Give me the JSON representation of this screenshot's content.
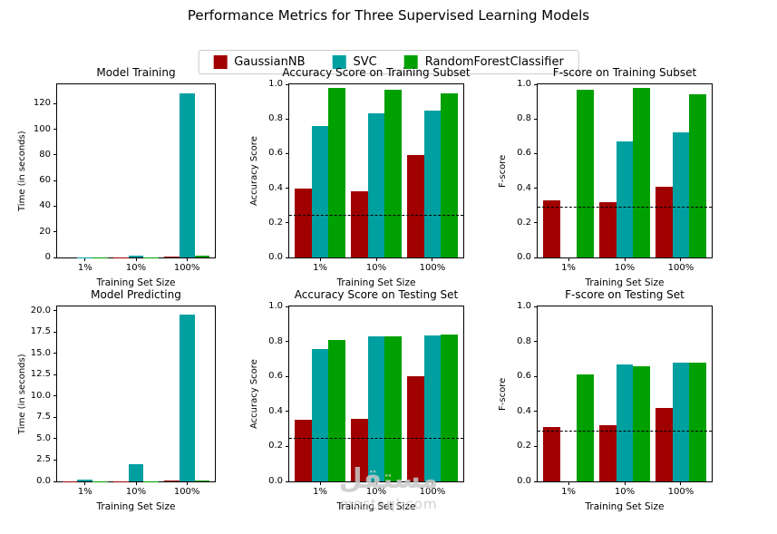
{
  "figure": {
    "title": "Performance Metrics for Three Supervised Learning Models",
    "watermark_line1": "مستقل",
    "watermark_line2": "mostaql.com"
  },
  "legend": {
    "items": [
      {
        "label": "GaussianNB",
        "color": "#A00000"
      },
      {
        "label": "SVC",
        "color": "#00A0A0"
      },
      {
        "label": "RandomForestClassifier",
        "color": "#00A000"
      }
    ]
  },
  "chart_data": [
    {
      "type": "bar",
      "title": "Model Training",
      "xlabel": "Training Set Size",
      "ylabel": "Time (in seconds)",
      "categories": [
        "1%",
        "10%",
        "100%"
      ],
      "series": [
        {
          "name": "GaussianNB",
          "color": "#A00000",
          "values": [
            0.05,
            0.1,
            0.4
          ]
        },
        {
          "name": "SVC",
          "color": "#00A0A0",
          "values": [
            0.2,
            1.5,
            128
          ]
        },
        {
          "name": "RandomForestClassifier",
          "color": "#00A000",
          "values": [
            0.1,
            0.3,
            1.3
          ]
        }
      ],
      "ylim": [
        0,
        135
      ],
      "yticks": [
        0,
        20,
        40,
        60,
        80,
        100,
        120
      ],
      "ytick_labels": [
        "0",
        "20",
        "40",
        "60",
        "80",
        "100",
        "120"
      ],
      "baseline": null,
      "grid": false
    },
    {
      "type": "bar",
      "title": "Accuracy Score on Training Subset",
      "xlabel": "Training Set Size",
      "ylabel": "Accuracy Score",
      "categories": [
        "1%",
        "10%",
        "100%"
      ],
      "series": [
        {
          "name": "GaussianNB",
          "color": "#A00000",
          "values": [
            0.4,
            0.38,
            0.59
          ]
        },
        {
          "name": "SVC",
          "color": "#00A0A0",
          "values": [
            0.76,
            0.83,
            0.85
          ]
        },
        {
          "name": "RandomForestClassifier",
          "color": "#00A000",
          "values": [
            0.98,
            0.97,
            0.95
          ]
        }
      ],
      "ylim": [
        0,
        1.0
      ],
      "yticks": [
        0,
        0.2,
        0.4,
        0.6,
        0.8,
        1.0
      ],
      "ytick_labels": [
        "0.0",
        "0.2",
        "0.4",
        "0.6",
        "0.8",
        "1.0"
      ],
      "baseline": 0.248,
      "grid": false
    },
    {
      "type": "bar",
      "title": "F-score on Training Subset",
      "xlabel": "Training Set Size",
      "ylabel": "F-score",
      "categories": [
        "1%",
        "10%",
        "100%"
      ],
      "series": [
        {
          "name": "GaussianNB",
          "color": "#A00000",
          "values": [
            0.33,
            0.32,
            0.41
          ]
        },
        {
          "name": "SVC",
          "color": "#00A0A0",
          "values": [
            0.0,
            0.67,
            0.72
          ]
        },
        {
          "name": "RandomForestClassifier",
          "color": "#00A000",
          "values": [
            0.97,
            0.98,
            0.94
          ]
        }
      ],
      "ylim": [
        0,
        1.0
      ],
      "yticks": [
        0,
        0.2,
        0.4,
        0.6,
        0.8,
        1.0
      ],
      "ytick_labels": [
        "0.0",
        "0.2",
        "0.4",
        "0.6",
        "0.8",
        "1.0"
      ],
      "baseline": 0.292,
      "grid": false
    },
    {
      "type": "bar",
      "title": "Model Predicting",
      "xlabel": "Training Set Size",
      "ylabel": "Time (in seconds)",
      "categories": [
        "1%",
        "10%",
        "100%"
      ],
      "series": [
        {
          "name": "GaussianNB",
          "color": "#A00000",
          "values": [
            0.02,
            0.03,
            0.06
          ]
        },
        {
          "name": "SVC",
          "color": "#00A0A0",
          "values": [
            0.22,
            2.0,
            19.5
          ]
        },
        {
          "name": "RandomForestClassifier",
          "color": "#00A000",
          "values": [
            0.02,
            0.05,
            0.13
          ]
        }
      ],
      "ylim": [
        0,
        20.5
      ],
      "yticks": [
        0,
        2.5,
        5,
        7.5,
        10,
        12.5,
        15,
        17.5,
        20
      ],
      "ytick_labels": [
        "0.0",
        "2.5",
        "5.0",
        "7.5",
        "10.0",
        "12.5",
        "15.0",
        "17.5",
        "20.0"
      ],
      "baseline": null,
      "grid": false
    },
    {
      "type": "bar",
      "title": "Accuracy Score on Testing Set",
      "xlabel": "Training Set Size",
      "ylabel": "Accuracy Score",
      "categories": [
        "1%",
        "10%",
        "100%"
      ],
      "series": [
        {
          "name": "GaussianNB",
          "color": "#A00000",
          "values": [
            0.35,
            0.36,
            0.6
          ]
        },
        {
          "name": "SVC",
          "color": "#00A0A0",
          "values": [
            0.756,
            0.83,
            0.835
          ]
        },
        {
          "name": "RandomForestClassifier",
          "color": "#00A000",
          "values": [
            0.81,
            0.83,
            0.84
          ]
        }
      ],
      "ylim": [
        0,
        1.0
      ],
      "yticks": [
        0,
        0.2,
        0.4,
        0.6,
        0.8,
        1.0
      ],
      "ytick_labels": [
        "0.0",
        "0.2",
        "0.4",
        "0.6",
        "0.8",
        "1.0"
      ],
      "baseline": 0.248,
      "grid": false
    },
    {
      "type": "bar",
      "title": "F-score on Testing Set",
      "xlabel": "Training Set Size",
      "ylabel": "F-score",
      "categories": [
        "1%",
        "10%",
        "100%"
      ],
      "series": [
        {
          "name": "GaussianNB",
          "color": "#A00000",
          "values": [
            0.31,
            0.32,
            0.42
          ]
        },
        {
          "name": "SVC",
          "color": "#00A0A0",
          "values": [
            0.0,
            0.67,
            0.68
          ]
        },
        {
          "name": "RandomForestClassifier",
          "color": "#00A000",
          "values": [
            0.61,
            0.66,
            0.68
          ]
        }
      ],
      "ylim": [
        0,
        1.0
      ],
      "yticks": [
        0,
        0.2,
        0.4,
        0.6,
        0.8,
        1.0
      ],
      "ytick_labels": [
        "0.0",
        "0.2",
        "0.4",
        "0.6",
        "0.8",
        "1.0"
      ],
      "baseline": 0.292,
      "grid": false
    }
  ]
}
